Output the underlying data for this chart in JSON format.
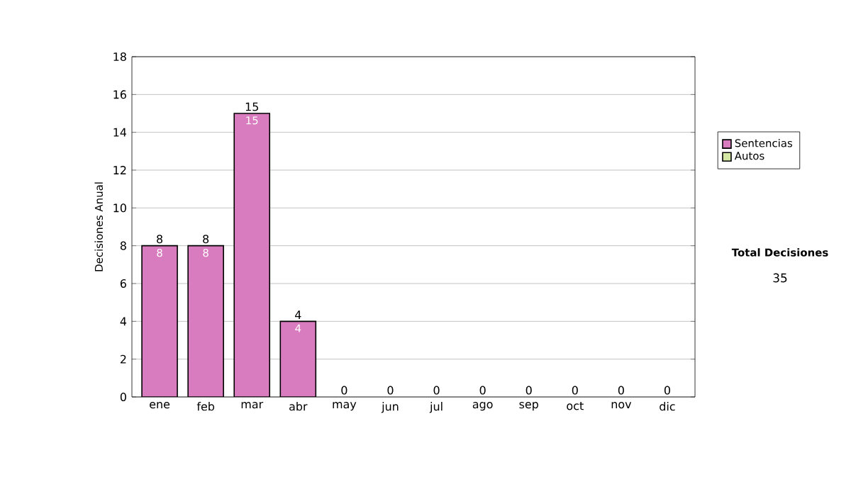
{
  "chart_data": {
    "type": "bar",
    "stacked": true,
    "ylabel": "Decisiones Anual",
    "categories": [
      "ene",
      "feb",
      "mar",
      "abr",
      "may",
      "jun",
      "jul",
      "ago",
      "sep",
      "oct",
      "nov",
      "dic"
    ],
    "series": [
      {
        "name": "Sentencias",
        "color": "#d97bbf",
        "values": [
          8,
          8,
          15,
          4,
          0,
          0,
          0,
          0,
          0,
          0,
          0,
          0
        ],
        "value_labels": [
          "8",
          "8",
          "15",
          "4",
          null,
          null,
          null,
          null,
          null,
          null,
          null,
          null
        ]
      },
      {
        "name": "Autos",
        "color": "#d4e8a4",
        "values": [
          0,
          0,
          0,
          0,
          0,
          0,
          0,
          0,
          0,
          0,
          0,
          0
        ]
      }
    ],
    "totals": [
      "8",
      "8",
      "15",
      "4",
      "0",
      "0",
      "0",
      "0",
      "0",
      "0",
      "0",
      "0"
    ],
    "ylim": [
      0,
      18
    ],
    "yticks": [
      0,
      2,
      4,
      6,
      8,
      10,
      12,
      14,
      16,
      18
    ],
    "grid": "y",
    "legend": "right",
    "annotations": [
      "Total Decisiones",
      "35"
    ]
  }
}
